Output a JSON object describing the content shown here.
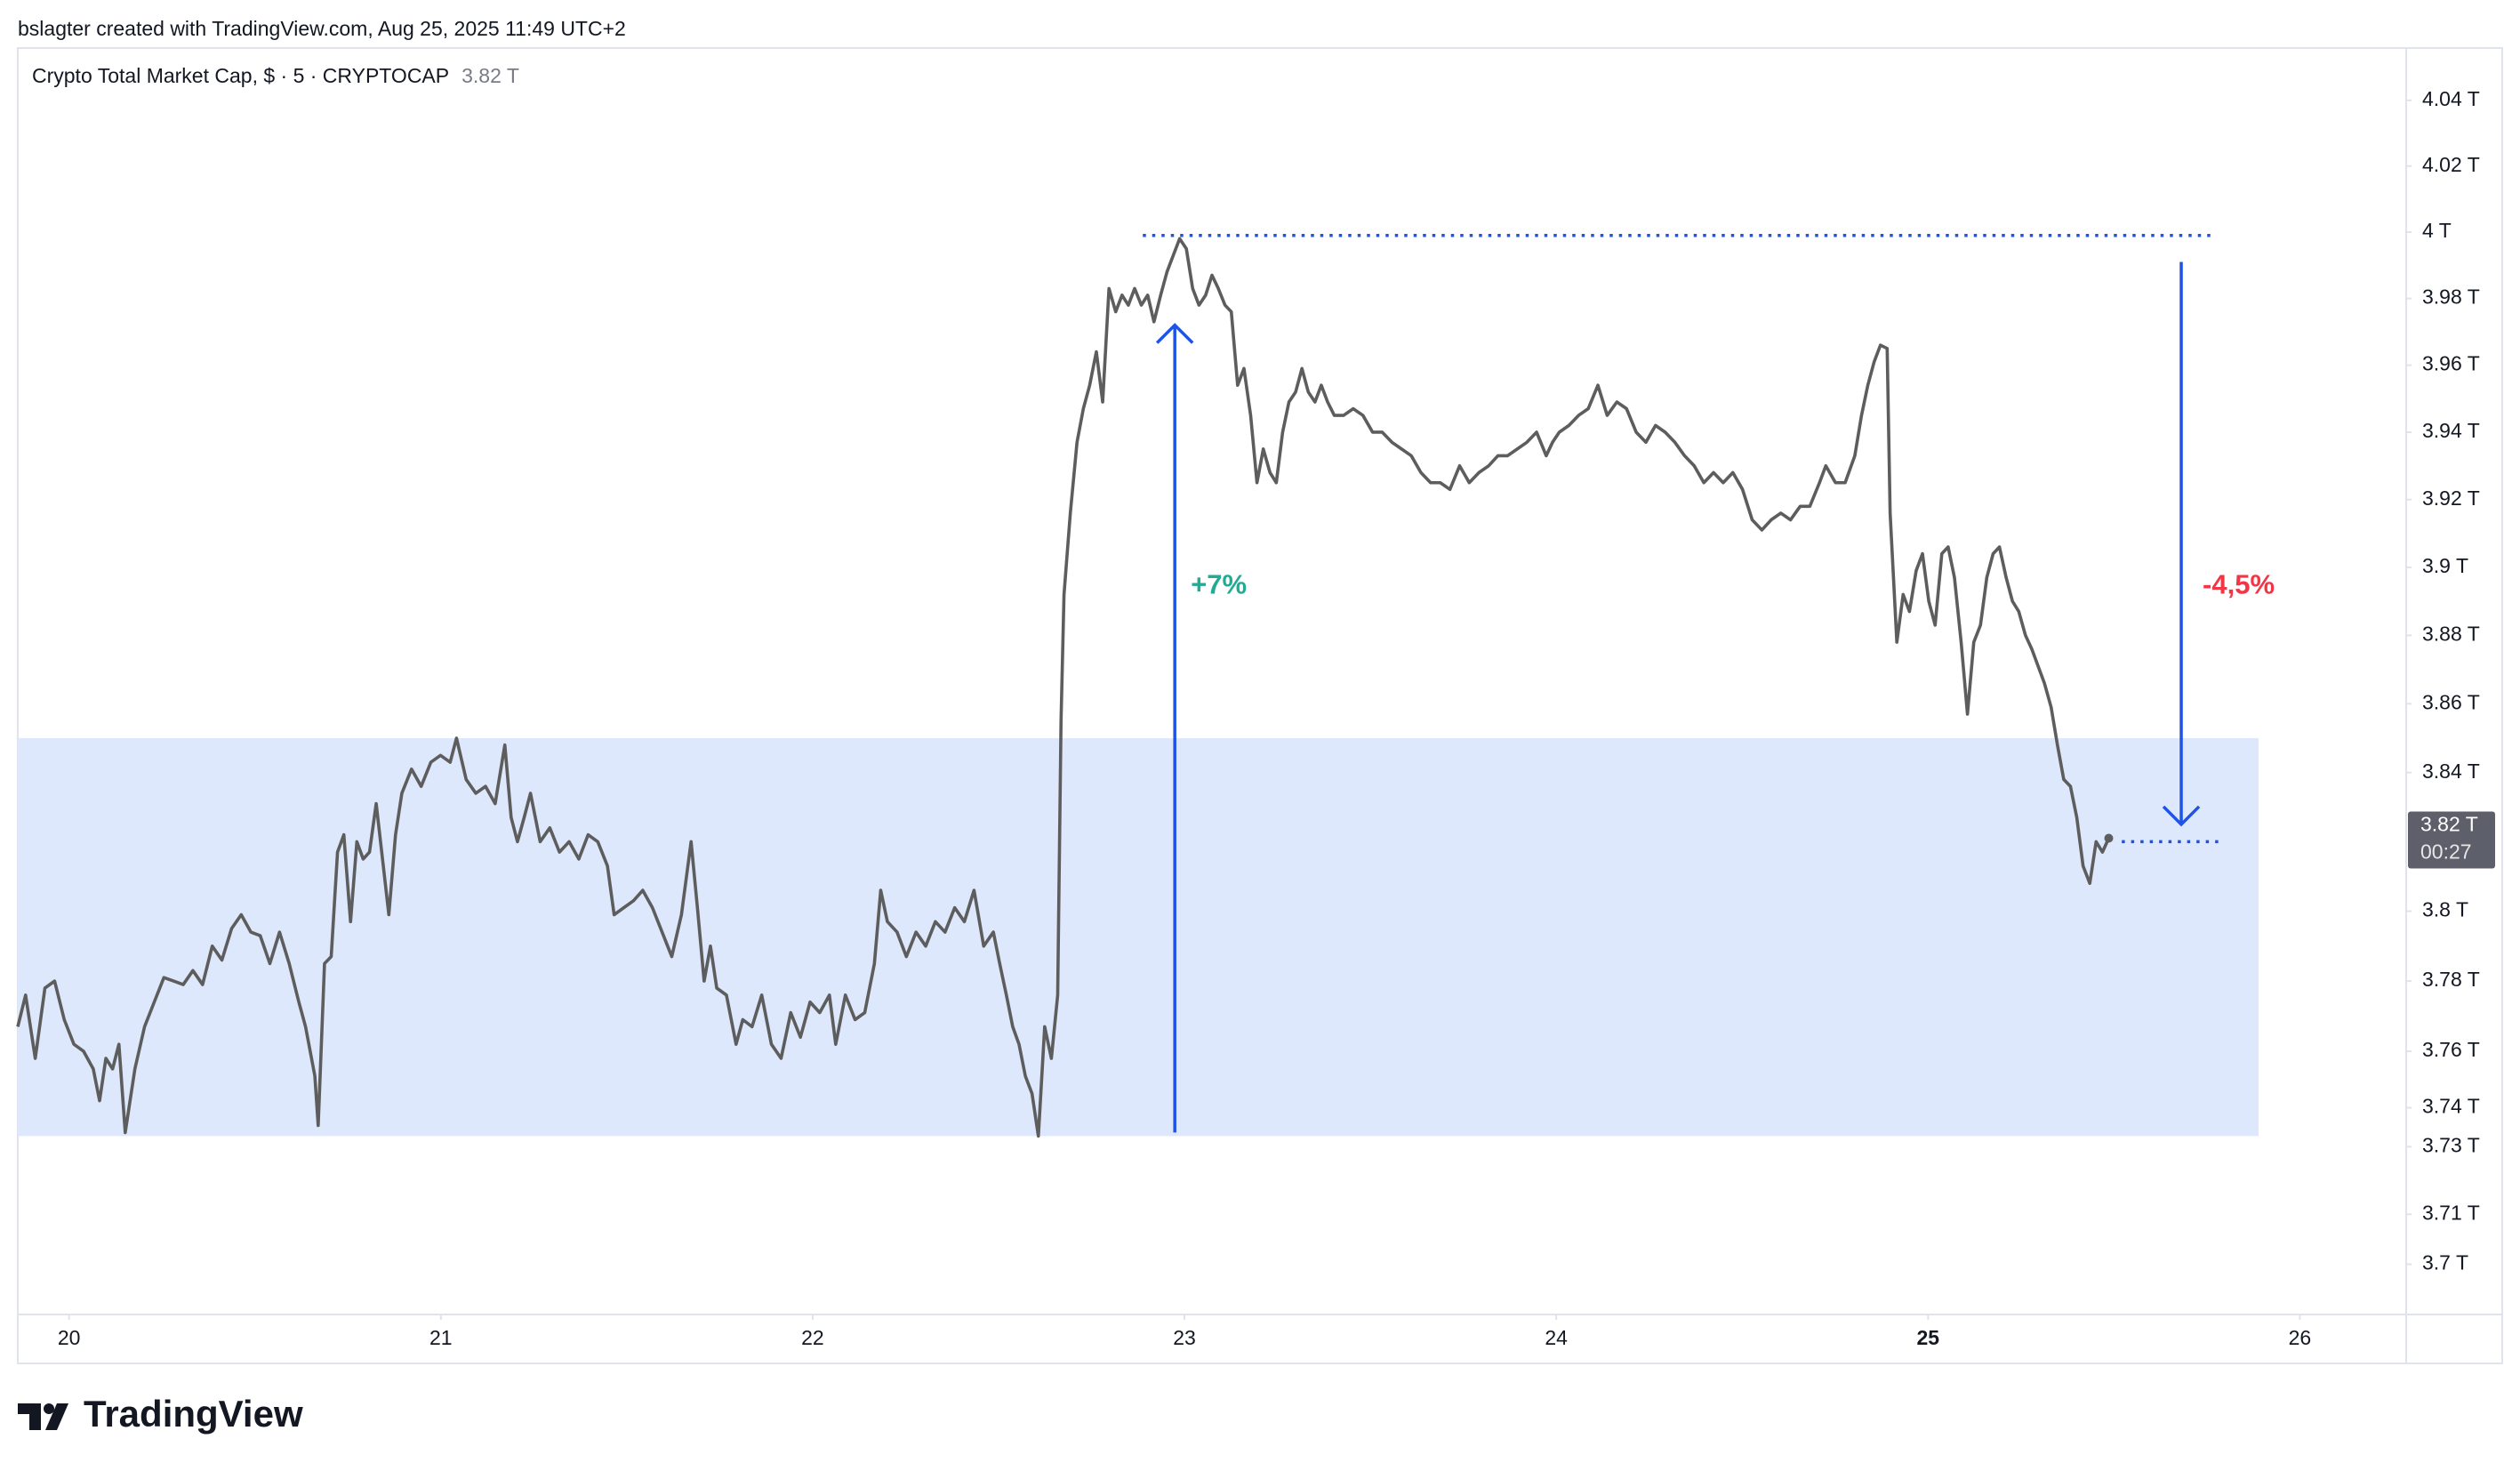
{
  "header": {
    "text": "bslagter created with TradingView.com, Aug 25, 2025 11:49 UTC+2"
  },
  "footer": {
    "brand": "TradingView"
  },
  "chart_data": {
    "type": "line",
    "legend_value": "3.82 T",
    "price_label": "3.82 T",
    "countdown": "00:27",
    "log_scale": true,
    "grid": false,
    "xlim": [
      19.862,
      26.286
    ],
    "xticks": [
      20,
      21,
      22,
      23,
      24,
      25,
      26
    ],
    "bold_xtick": 25,
    "ylim": [
      3.686,
      4.056
    ],
    "yticks": [
      {
        "value": 4.04,
        "label": "4.04 T"
      },
      {
        "value": 4.02,
        "label": "4.02 T"
      },
      {
        "value": 4.0,
        "label": "4 T"
      },
      {
        "value": 3.98,
        "label": "3.98 T"
      },
      {
        "value": 3.96,
        "label": "3.96 T"
      },
      {
        "value": 3.94,
        "label": "3.94 T"
      },
      {
        "value": 3.92,
        "label": "3.92 T"
      },
      {
        "value": 3.9,
        "label": "3.9 T"
      },
      {
        "value": 3.88,
        "label": "3.88 T"
      },
      {
        "value": 3.86,
        "label": "3.86 T"
      },
      {
        "value": 3.84,
        "label": "3.84 T"
      },
      {
        "value": 3.8,
        "label": "3.8 T"
      },
      {
        "value": 3.78,
        "label": "3.78 T"
      },
      {
        "value": 3.76,
        "label": "3.76 T"
      },
      {
        "value": 3.744,
        "label": "3.74 T"
      },
      {
        "value": 3.733,
        "label": "3.73 T"
      },
      {
        "value": 3.714,
        "label": "3.71 T"
      },
      {
        "value": 3.7,
        "label": "3.7 T"
      }
    ],
    "zone": {
      "x": [
        19.862,
        25.889
      ],
      "y": [
        3.736,
        3.85
      ],
      "color": "#dee8fc"
    },
    "levels": [
      {
        "y": 3.999,
        "x": [
          22.888,
          25.772
        ]
      },
      {
        "y": 3.82,
        "x": [
          25.521,
          25.781
        ]
      }
    ],
    "annotation_color": "#1e53e5",
    "arrows": [
      {
        "x": 22.974,
        "y": [
          3.737,
          3.972
        ],
        "label": "+7%",
        "label_color": "#22ab94"
      },
      {
        "x": 25.681,
        "y": [
          3.991,
          3.825
        ],
        "label": "-4,5%",
        "label_color": "#f23645"
      }
    ],
    "series": [
      {
        "name": "Crypto Total Market Cap, $ · 5 · CRYPTOCAP",
        "color": "#5d5d5d",
        "x": [
          19.862,
          19.883,
          19.909,
          19.935,
          19.961,
          19.987,
          20.013,
          20.039,
          20.065,
          20.082,
          20.099,
          20.117,
          20.134,
          20.151,
          20.177,
          20.203,
          20.229,
          20.255,
          20.281,
          20.307,
          20.333,
          20.359,
          20.385,
          20.411,
          20.437,
          20.463,
          20.489,
          20.514,
          20.54,
          20.566,
          20.592,
          20.618,
          20.636,
          20.661,
          20.67,
          20.687,
          20.705,
          20.722,
          20.739,
          20.757,
          20.774,
          20.791,
          20.808,
          20.826,
          20.843,
          20.86,
          20.878,
          20.895,
          20.921,
          20.947,
          20.973,
          20.999,
          21.025,
          21.042,
          21.068,
          21.094,
          21.12,
          21.146,
          21.172,
          21.189,
          21.206,
          21.224,
          21.241,
          21.267,
          21.293,
          21.319,
          21.345,
          21.371,
          21.396,
          21.422,
          21.448,
          21.466,
          21.492,
          21.518,
          21.543,
          21.569,
          21.595,
          21.621,
          21.647,
          21.673,
          21.69,
          21.708,
          21.725,
          21.742,
          21.768,
          21.794,
          21.812,
          21.837,
          21.863,
          21.889,
          21.915,
          21.941,
          21.967,
          21.993,
          22.019,
          22.045,
          22.062,
          22.088,
          22.114,
          22.14,
          22.166,
          22.183,
          22.201,
          22.227,
          22.252,
          22.278,
          22.304,
          22.33,
          22.356,
          22.382,
          22.408,
          22.434,
          22.46,
          22.486,
          22.503,
          22.521,
          22.538,
          22.555,
          22.572,
          22.59,
          22.607,
          22.624,
          22.642,
          22.659,
          22.668,
          22.676,
          22.693,
          22.711,
          22.728,
          22.745,
          22.763,
          22.78,
          22.797,
          22.815,
          22.832,
          22.849,
          22.866,
          22.884,
          22.901,
          22.918,
          22.936,
          22.953,
          22.97,
          22.987,
          23.005,
          23.022,
          23.039,
          23.057,
          23.074,
          23.091,
          23.109,
          23.126,
          23.143,
          23.16,
          23.178,
          23.195,
          23.212,
          23.23,
          23.247,
          23.264,
          23.281,
          23.299,
          23.316,
          23.333,
          23.351,
          23.368,
          23.385,
          23.403,
          23.428,
          23.454,
          23.48,
          23.506,
          23.532,
          23.558,
          23.584,
          23.61,
          23.636,
          23.662,
          23.688,
          23.714,
          23.74,
          23.766,
          23.792,
          23.818,
          23.843,
          23.869,
          23.895,
          23.921,
          23.947,
          23.973,
          23.99,
          24.008,
          24.034,
          24.06,
          24.086,
          24.112,
          24.137,
          24.163,
          24.189,
          24.215,
          24.241,
          24.267,
          24.293,
          24.319,
          24.345,
          24.371,
          24.397,
          24.423,
          24.449,
          24.475,
          24.501,
          24.527,
          24.553,
          24.578,
          24.604,
          24.63,
          24.656,
          24.682,
          24.708,
          24.725,
          24.751,
          24.777,
          24.803,
          24.821,
          24.838,
          24.855,
          24.872,
          24.89,
          24.898,
          24.916,
          24.933,
          24.95,
          24.968,
          24.985,
          25.002,
          25.019,
          25.037,
          25.054,
          25.071,
          25.089,
          25.106,
          25.123,
          25.141,
          25.158,
          25.175,
          25.192,
          25.21,
          25.227,
          25.244,
          25.262,
          25.279,
          25.296,
          25.313,
          25.331,
          25.348,
          25.365,
          25.383,
          25.4,
          25.417,
          25.435,
          25.452,
          25.469,
          25.486
        ],
        "values": [
          3.767,
          3.776,
          3.758,
          3.778,
          3.78,
          3.769,
          3.762,
          3.76,
          3.755,
          3.746,
          3.758,
          3.755,
          3.762,
          3.737,
          3.755,
          3.767,
          3.774,
          3.781,
          3.78,
          3.779,
          3.783,
          3.779,
          3.79,
          3.786,
          3.795,
          3.799,
          3.794,
          3.793,
          3.785,
          3.794,
          3.785,
          3.774,
          3.767,
          3.753,
          3.739,
          3.785,
          3.787,
          3.817,
          3.822,
          3.797,
          3.82,
          3.815,
          3.817,
          3.831,
          3.815,
          3.799,
          3.822,
          3.834,
          3.841,
          3.836,
          3.843,
          3.845,
          3.843,
          3.85,
          3.838,
          3.834,
          3.836,
          3.831,
          3.848,
          3.827,
          3.82,
          3.827,
          3.834,
          3.82,
          3.824,
          3.817,
          3.82,
          3.815,
          3.822,
          3.82,
          3.813,
          3.799,
          3.801,
          3.803,
          3.806,
          3.801,
          3.794,
          3.787,
          3.799,
          3.82,
          3.801,
          3.78,
          3.79,
          3.778,
          3.776,
          3.762,
          3.769,
          3.767,
          3.776,
          3.762,
          3.758,
          3.771,
          3.764,
          3.774,
          3.771,
          3.776,
          3.762,
          3.776,
          3.769,
          3.771,
          3.785,
          3.806,
          3.797,
          3.794,
          3.787,
          3.794,
          3.79,
          3.797,
          3.794,
          3.801,
          3.797,
          3.806,
          3.79,
          3.794,
          3.785,
          3.776,
          3.767,
          3.762,
          3.753,
          3.748,
          3.736,
          3.767,
          3.758,
          3.776,
          3.855,
          3.892,
          3.916,
          3.937,
          3.947,
          3.954,
          3.964,
          3.949,
          3.983,
          3.976,
          3.981,
          3.978,
          3.983,
          3.978,
          3.981,
          3.973,
          3.981,
          3.988,
          3.993,
          3.998,
          3.995,
          3.983,
          3.978,
          3.981,
          3.987,
          3.983,
          3.978,
          3.976,
          3.954,
          3.959,
          3.945,
          3.925,
          3.935,
          3.928,
          3.925,
          3.94,
          3.949,
          3.952,
          3.959,
          3.952,
          3.949,
          3.954,
          3.949,
          3.945,
          3.945,
          3.947,
          3.945,
          3.94,
          3.94,
          3.937,
          3.935,
          3.933,
          3.928,
          3.925,
          3.925,
          3.923,
          3.93,
          3.925,
          3.928,
          3.93,
          3.933,
          3.933,
          3.935,
          3.937,
          3.94,
          3.933,
          3.937,
          3.94,
          3.942,
          3.945,
          3.947,
          3.954,
          3.945,
          3.949,
          3.947,
          3.94,
          3.937,
          3.942,
          3.94,
          3.937,
          3.933,
          3.93,
          3.925,
          3.928,
          3.925,
          3.928,
          3.923,
          3.914,
          3.911,
          3.914,
          3.916,
          3.914,
          3.918,
          3.918,
          3.925,
          3.93,
          3.925,
          3.925,
          3.933,
          3.945,
          3.954,
          3.961,
          3.966,
          3.965,
          3.916,
          3.878,
          3.892,
          3.887,
          3.899,
          3.904,
          3.89,
          3.883,
          3.904,
          3.906,
          3.897,
          3.878,
          3.857,
          3.878,
          3.883,
          3.897,
          3.904,
          3.906,
          3.897,
          3.89,
          3.887,
          3.88,
          3.876,
          3.871,
          3.866,
          3.859,
          3.848,
          3.838,
          3.836,
          3.827,
          3.813,
          3.808,
          3.82,
          3.817,
          3.821
        ]
      }
    ]
  }
}
